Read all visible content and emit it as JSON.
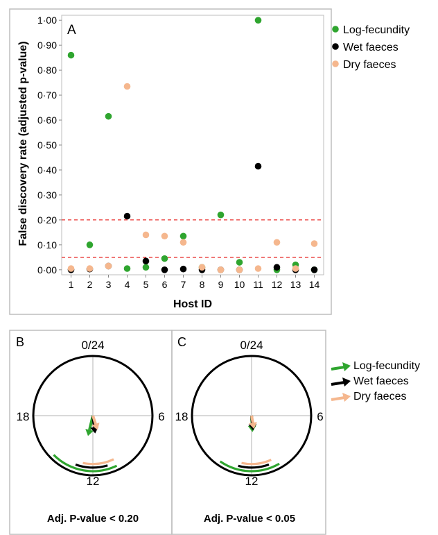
{
  "colors": {
    "log_fecundity": "#2fa52f",
    "wet_faeces": "#000000",
    "dry_faeces": "#f5b78e",
    "threshold": "#e8312f",
    "frame": "#bdbdbd",
    "grid": "#d9d9d9"
  },
  "panel_a": {
    "panel_label": "A",
    "chart_data": {
      "type": "scatter",
      "xlabel": "Host ID",
      "ylabel": "False discovery rate (adjusted p-value)",
      "xlim": [
        0.5,
        14.5
      ],
      "ylim": [
        -0.02,
        1.02
      ],
      "x": [
        1,
        2,
        3,
        4,
        5,
        6,
        7,
        8,
        9,
        10,
        11,
        12,
        13,
        14
      ],
      "x_tick_labels": [
        "1",
        "2",
        "3",
        "4",
        "5",
        "6",
        "7",
        "8",
        "9",
        "10",
        "11",
        "12",
        "13",
        "14"
      ],
      "y_ticks": [
        0,
        0.1,
        0.2,
        0.3,
        0.4,
        0.5,
        0.6,
        0.7,
        0.8,
        0.9,
        1.0
      ],
      "y_tick_labels": [
        "0·00",
        "0·10",
        "0·20",
        "0·30",
        "0·40",
        "0·50",
        "0·60",
        "0·70",
        "0·80",
        "0·90",
        "1·00"
      ],
      "thresholds": [
        0.2,
        0.05
      ],
      "legend_position": "top-right, outside plot",
      "series": [
        {
          "name": "Log-fecundity",
          "color_key": "log_fecundity",
          "values": [
            0.86,
            0.1,
            0.615,
            0.005,
            0.01,
            0.045,
            0.135,
            0.01,
            0.22,
            0.03,
            1.0,
            0.0,
            0.02,
            0.0
          ]
        },
        {
          "name": "Wet faeces",
          "color_key": "wet_faeces",
          "values": [
            0.0,
            0.003,
            0.015,
            0.215,
            0.035,
            0.0,
            0.003,
            0.0,
            0.0,
            0.0,
            0.415,
            0.01,
            0.0,
            0.0
          ]
        },
        {
          "name": "Dry faeces",
          "color_key": "dry_faeces",
          "values": [
            0.005,
            0.005,
            0.015,
            0.735,
            0.14,
            0.135,
            0.11,
            0.01,
            0.0,
            0.0,
            0.005,
            0.11,
            0.005,
            0.105
          ]
        }
      ]
    }
  },
  "clock_panels": [
    {
      "panel_label": "B",
      "caption": "Adj. P-value < 0.20",
      "hour_labels": {
        "top": "0/24",
        "right": "6",
        "bottom": "12",
        "left": "18"
      },
      "chart_data": {
        "type": "circular",
        "unit": "hours (0-24)",
        "series": [
          {
            "name": "Log-fecundity",
            "color_key": "log_fecundity",
            "mean_phase_hours": 12.9,
            "vector_length": 0.14,
            "arc_hours": [
              10.3,
              15.0
            ]
          },
          {
            "name": "Wet faeces",
            "color_key": "wet_faeces",
            "mean_phase_hours": 11.5,
            "vector_length": 0.12,
            "arc_hours": [
              10.9,
              13.3
            ]
          },
          {
            "name": "Dry faeces",
            "color_key": "dry_faeces",
            "mean_phase_hours": 10.8,
            "vector_length": 0.1,
            "arc_hours": [
              10.3,
              12.8
            ]
          }
        ]
      }
    },
    {
      "panel_label": "C",
      "caption": "Adj. P-value < 0.05",
      "hour_labels": {
        "top": "0/24",
        "right": "6",
        "bottom": "12",
        "left": "18"
      },
      "chart_data": {
        "type": "circular",
        "unit": "hours (0-24)",
        "series": [
          {
            "name": "Log-fecundity",
            "color_key": "log_fecundity",
            "mean_phase_hours": 11.8,
            "vector_length": 0.11,
            "arc_hours": [
              10.0,
              14.3
            ]
          },
          {
            "name": "Wet faeces",
            "color_key": "wet_faeces",
            "mean_phase_hours": 11.6,
            "vector_length": 0.1,
            "arc_hours": [
              10.7,
              13.0
            ]
          },
          {
            "name": "Dry faeces",
            "color_key": "dry_faeces",
            "mean_phase_hours": 11.3,
            "vector_length": 0.09,
            "arc_hours": [
              10.4,
              12.8
            ]
          }
        ]
      }
    }
  ],
  "clock_legend": [
    "Log-fecundity",
    "Wet faeces",
    "Dry faeces"
  ]
}
